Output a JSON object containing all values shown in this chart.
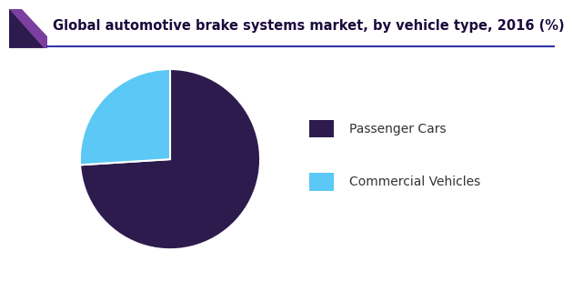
{
  "title": "Global automotive brake systems market, by vehicle type, 2016 (%)",
  "labels": [
    "Passenger Cars",
    "Commercial Vehicles"
  ],
  "values": [
    74,
    26
  ],
  "colors": [
    "#2d1b4e",
    "#5bc8f5"
  ],
  "legend_labels": [
    "Passenger Cars",
    "Commercial Vehicles"
  ],
  "background_color": "#ffffff",
  "title_fontsize": 10.5,
  "title_color": "#1a0a3c",
  "legend_fontsize": 10,
  "header_purple": "#7b3fa0",
  "header_dark": "#2d1b4e",
  "header_line_color": "#3333aa",
  "pie_startangle": 90,
  "pie_counterclock": false
}
